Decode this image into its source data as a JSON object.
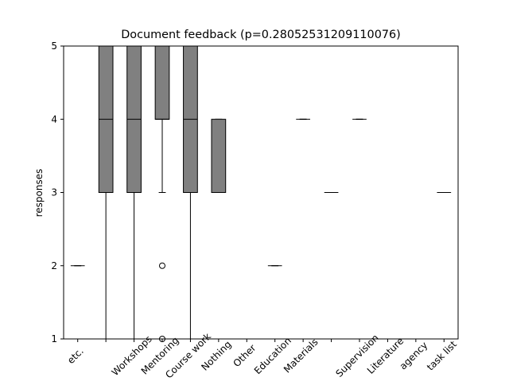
{
  "chart_data": {
    "type": "boxplot",
    "title": "Document feedback (p=0.28052531209110076)",
    "y_label": "responses",
    "categories": [
      "etc.",
      null,
      "Workshops",
      "Mentoring",
      "Course work",
      "Nothing",
      "Other",
      "Education",
      "Materials",
      null,
      "Supervision",
      "Literature",
      "agency",
      "task list"
    ],
    "color": "#808080",
    "boxes": [
      {
        "whislo": 2,
        "q1": 2,
        "med": 2,
        "q3": 2,
        "whishi": 2,
        "fliers": []
      },
      {
        "whislo": 1,
        "q1": 3,
        "med": 4,
        "q3": 5,
        "whishi": 5,
        "fliers": []
      },
      {
        "whislo": 1,
        "q1": 3,
        "med": 4,
        "q3": 5,
        "whishi": 5,
        "fliers": []
      },
      {
        "whislo": 3,
        "q1": 4,
        "med": 4,
        "q3": 5,
        "whishi": 5,
        "fliers": [
          2,
          1
        ]
      },
      {
        "whislo": 1,
        "q1": 3,
        "med": 4,
        "q3": 5,
        "whishi": 5,
        "fliers": []
      },
      {
        "whislo": 3,
        "q1": 3,
        "med": 3,
        "q3": 4,
        "whishi": 4,
        "fliers": []
      },
      {
        "whislo": 5,
        "q1": 5,
        "med": 5,
        "q3": 5,
        "whishi": 5,
        "fliers": []
      },
      {
        "whislo": 2,
        "q1": 2,
        "med": 2,
        "q3": 2,
        "whishi": 2,
        "fliers": []
      },
      {
        "whislo": 4,
        "q1": 4,
        "med": 4,
        "q3": 4,
        "whishi": 4,
        "fliers": []
      },
      {
        "whislo": 3,
        "q1": 3,
        "med": 3,
        "q3": 3,
        "whishi": 3,
        "fliers": []
      },
      {
        "whislo": 4,
        "q1": 4,
        "med": 4,
        "q3": 4,
        "whishi": 4,
        "fliers": []
      },
      {
        "whislo": 1,
        "q1": 1,
        "med": 1,
        "q3": 1,
        "whishi": 1,
        "fliers": []
      },
      {
        "whislo": 5,
        "q1": 5,
        "med": 5,
        "q3": 5,
        "whishi": 5,
        "fliers": []
      },
      {
        "whislo": 3,
        "q1": 3,
        "med": 3,
        "q3": 3,
        "whishi": 3,
        "fliers": []
      }
    ],
    "ylim": [
      1,
      5
    ],
    "yticks": [
      1,
      2,
      3,
      4,
      5
    ],
    "grid": false
  }
}
